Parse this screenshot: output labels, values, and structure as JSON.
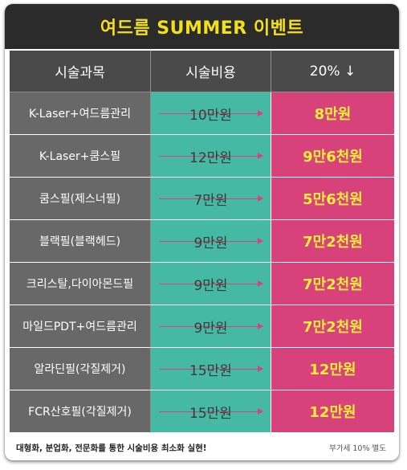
{
  "title": "여드름 SUMMER 이벤트",
  "headers": [
    "시술과목",
    "시술비용",
    "20% ↓"
  ],
  "rows": [
    {
      "name": "K-Laser+여드름관리",
      "price": "10만원",
      "sale": "8만원"
    },
    {
      "name": "K-Laser+쿰스필",
      "price": "12만원",
      "sale": "9만6천원"
    },
    {
      "name": "쿰스필(제스너필)",
      "price": "7만원",
      "sale": "5만6천원"
    },
    {
      "name": "블랙필(블랙헤드)",
      "price": "9만원",
      "sale": "7만2천원"
    },
    {
      "name": "크리스탈,다이아몬드필",
      "price": "9만원",
      "sale": "7만2천원"
    },
    {
      "name": "마일드PDT+여드름관리",
      "price": "9만원",
      "sale": "7만2천원"
    },
    {
      "name": "알라딘필(각질제거)",
      "price": "15만원",
      "sale": "12만원"
    },
    {
      "name": "FCR산호필(각질제거)",
      "price": "15만원",
      "sale": "12만원"
    }
  ],
  "footer": {
    "left": "대형화, 분업화, 전문화를 통한 시술비용 최소화 실현!",
    "right": "부가세 10% 별도"
  },
  "colors": {
    "title_bg": "#2b2b2b",
    "title_text": "#f3e01c",
    "header_bg": "#4a4a4a",
    "name_bg": "#686868",
    "price_bg": "#46b9a4",
    "sale_bg": "#d8427a",
    "sale_text": "#f8ef3a"
  }
}
